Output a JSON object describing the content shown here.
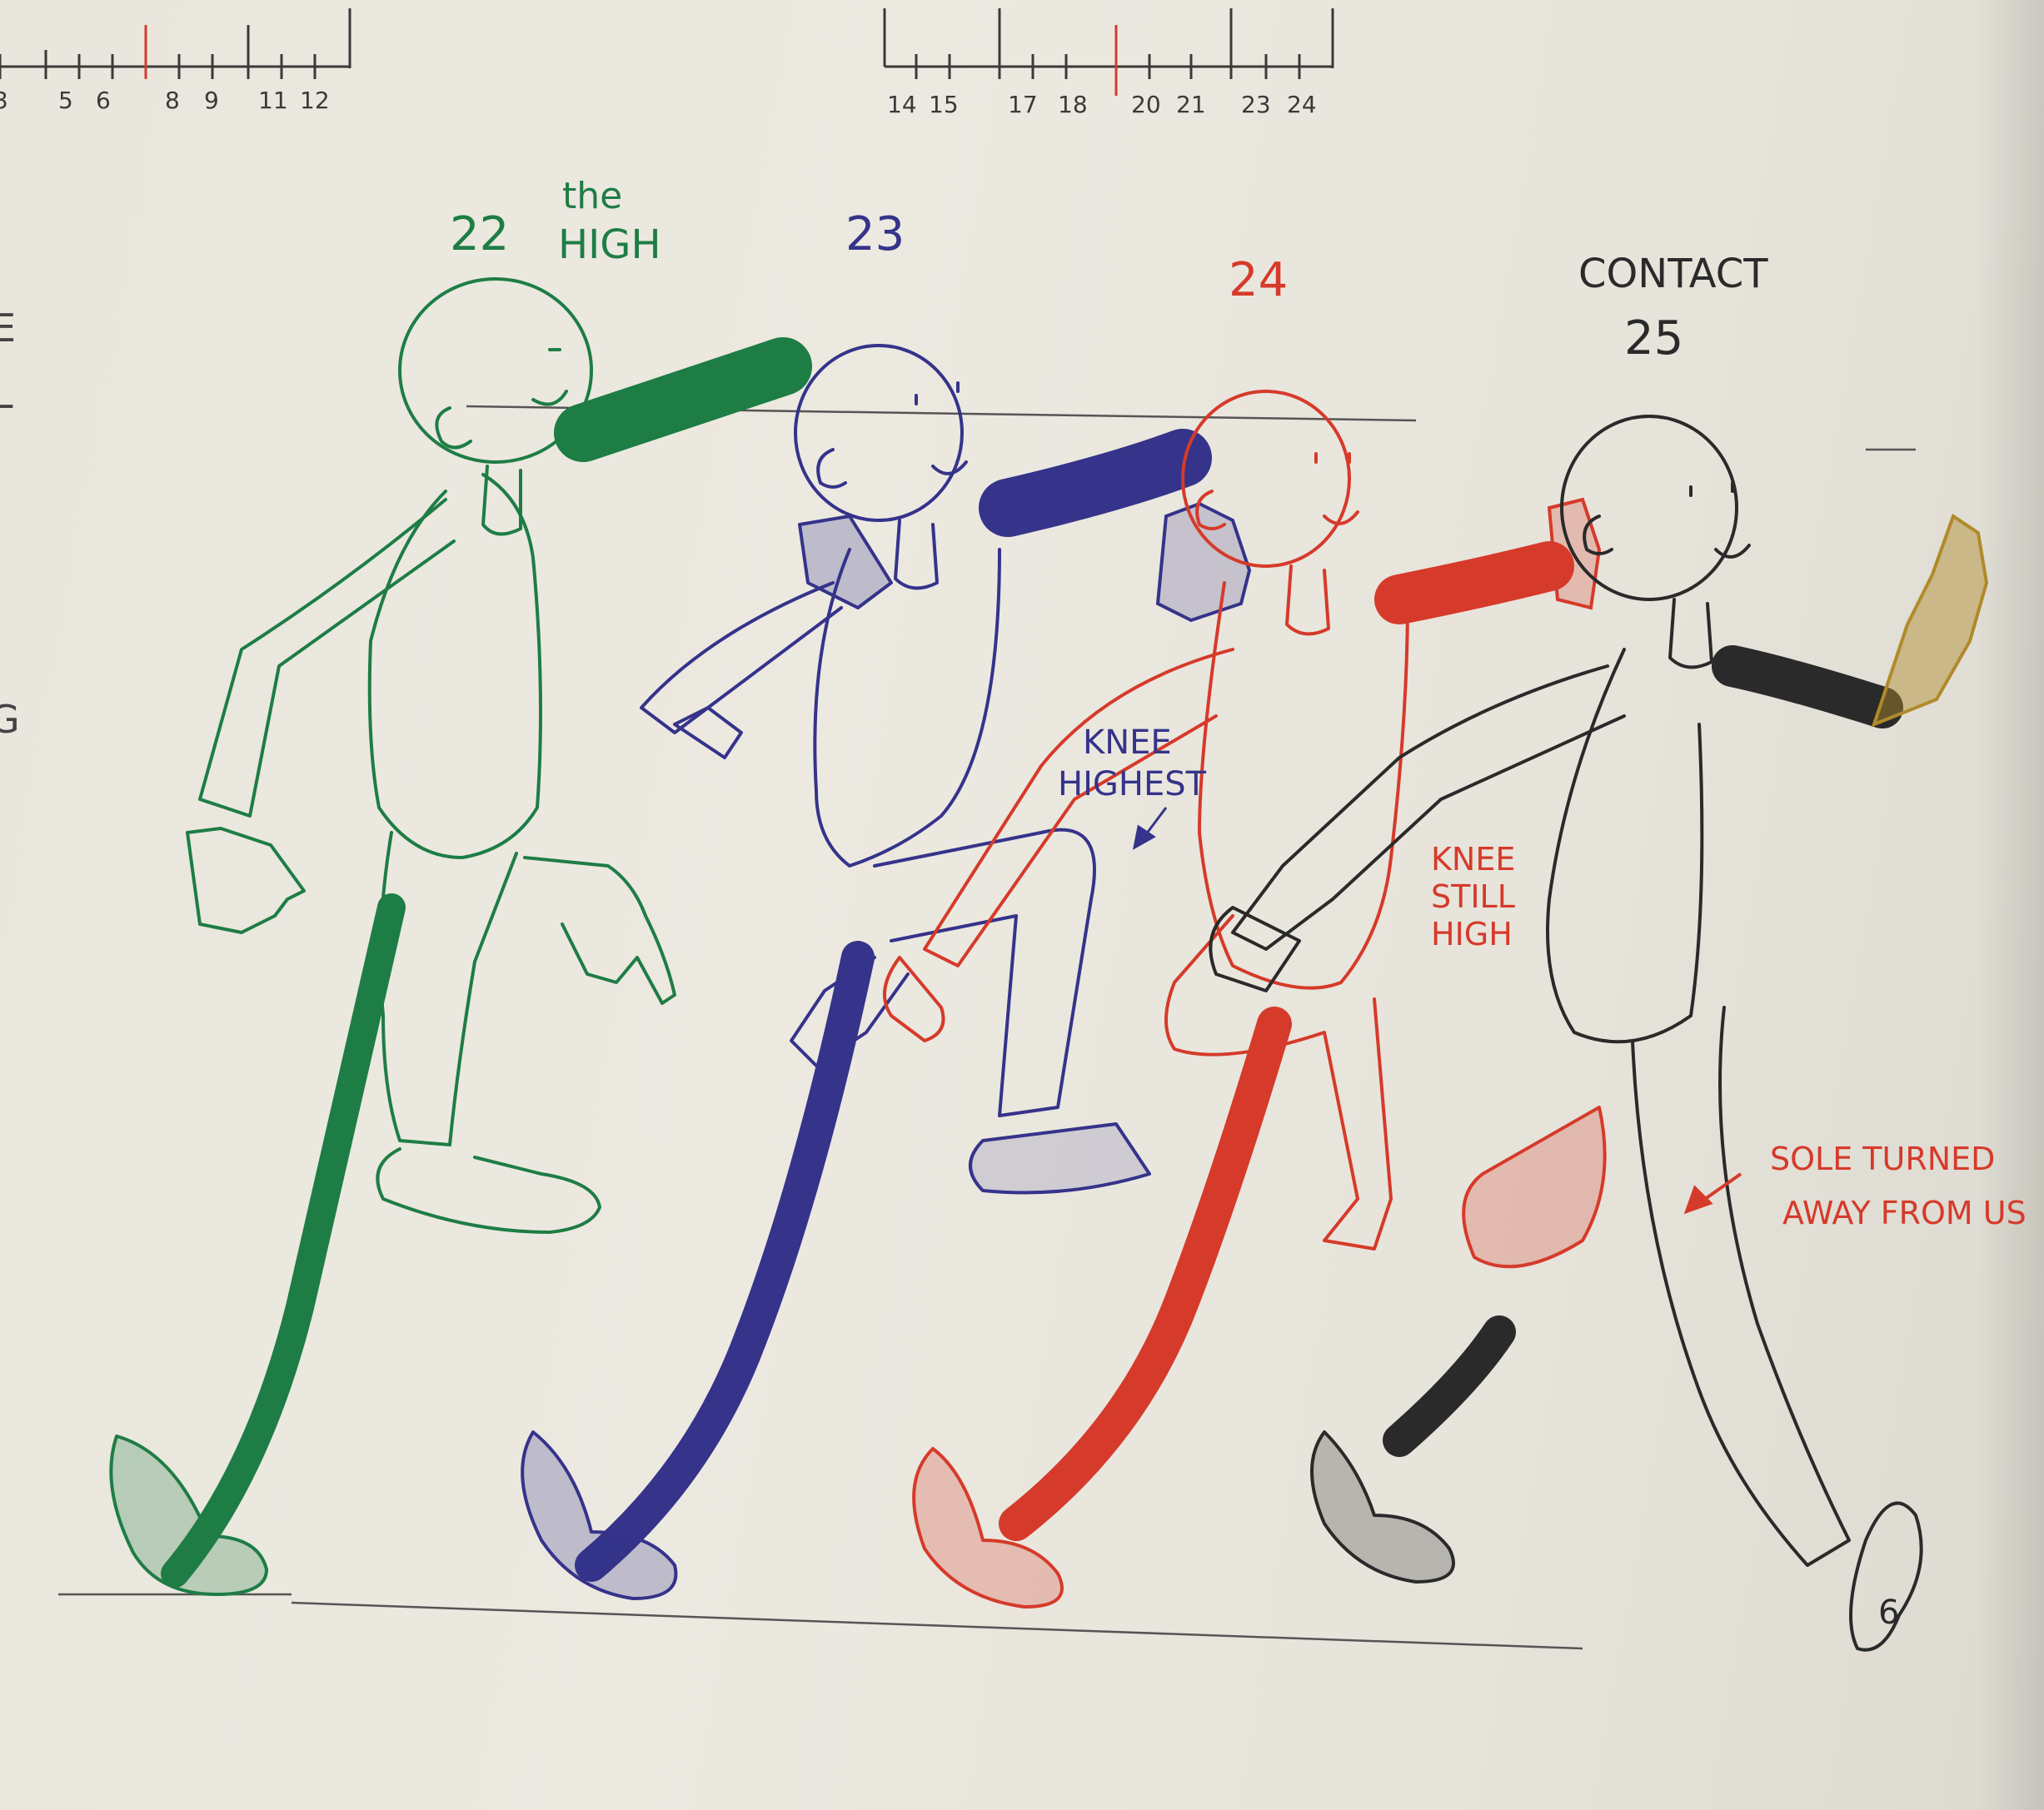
{
  "timeline_left": {
    "ticks": [
      "3",
      "5",
      "6",
      "8",
      "9",
      "11",
      "12"
    ]
  },
  "timeline_right": {
    "ticks": [
      "14",
      "15",
      "17",
      "18",
      "20",
      "21",
      "23",
      "24"
    ]
  },
  "frames": [
    {
      "label": "22",
      "sublabel_top": "the",
      "sublabel_bottom": "HIGH",
      "color": "#1e7d45"
    },
    {
      "label": "23",
      "color": "#35338a"
    },
    {
      "label": "24",
      "color": "#d63a2a"
    },
    {
      "label": "25",
      "title": "CONTACT",
      "color": "#2a2a2a"
    }
  ],
  "annotations": {
    "knee_highest": [
      "KNEE",
      "HIGHEST"
    ],
    "knee_still_high": [
      "KNEE",
      "STILL",
      "HIGH"
    ],
    "sole_turned": [
      "SOLE TURNED",
      "AWAY FROM US"
    ],
    "margin_left": [
      "E",
      "L",
      "G"
    ]
  },
  "colors": {
    "green": "#1e7d45",
    "blue": "#35338a",
    "red": "#d63a2a",
    "black": "#2a2a2a",
    "gold": "#b08a2a",
    "paper": "#ebe8e0"
  }
}
